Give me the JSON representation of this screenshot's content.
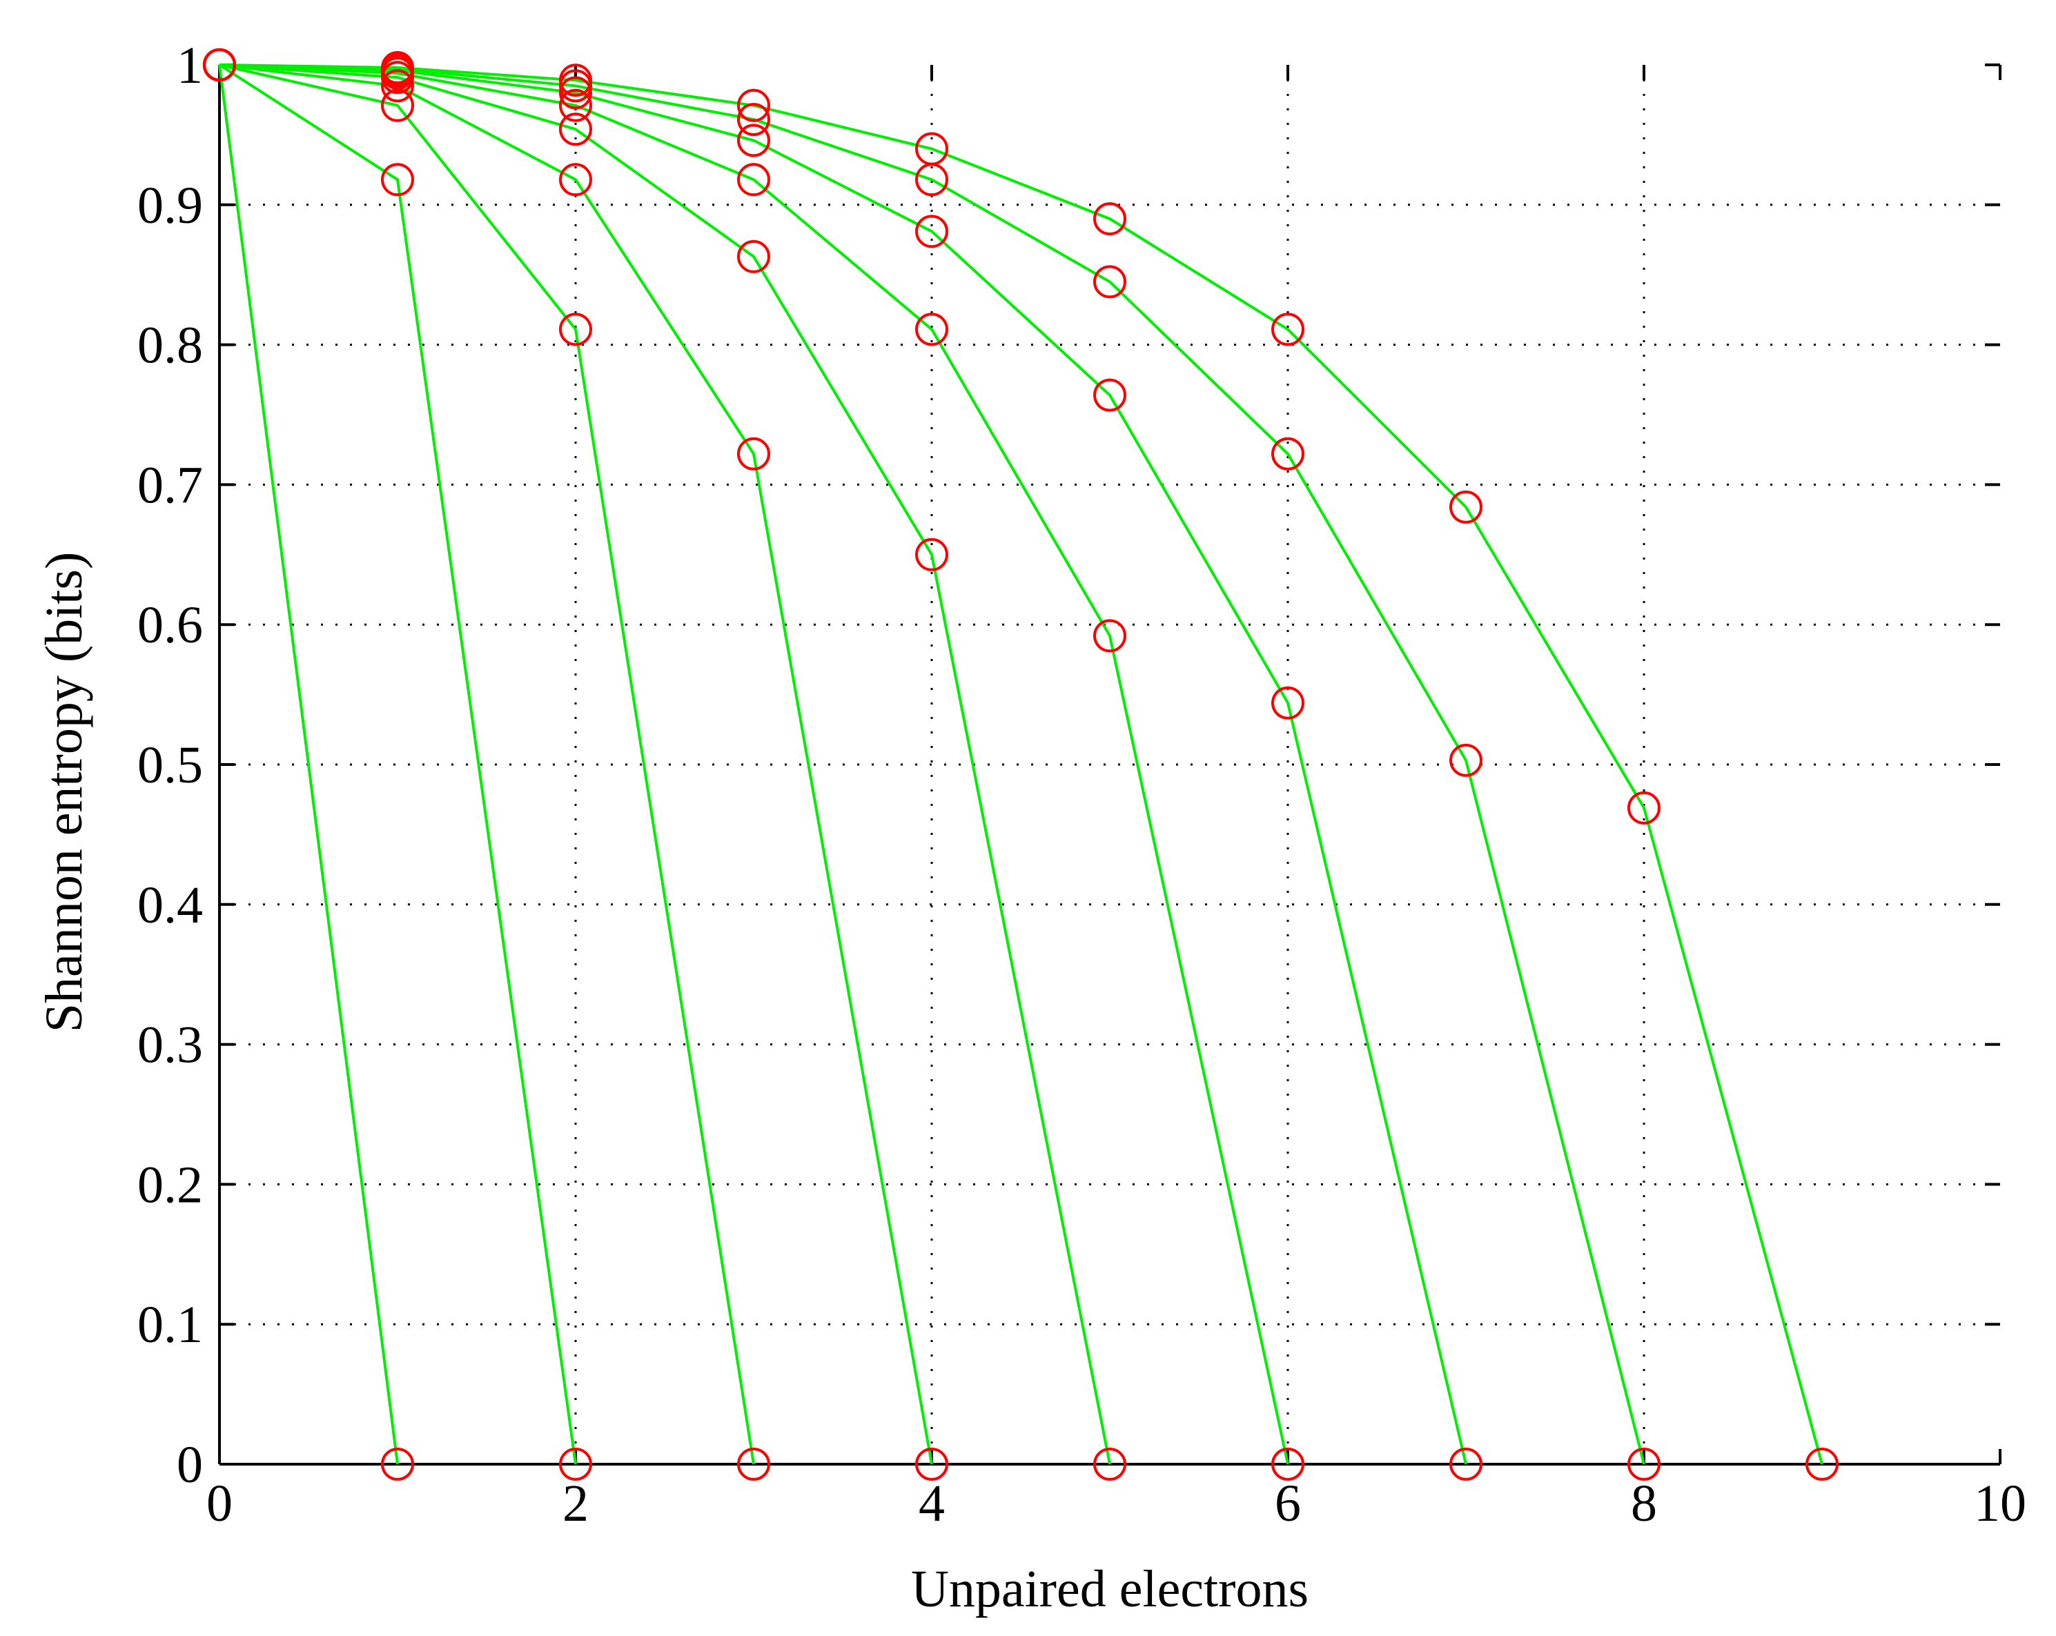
{
  "chart_data": {
    "type": "line",
    "title": "",
    "xlabel": "Unpaired electrons",
    "ylabel": "Shannon entropy (bits)",
    "xlim": [
      0,
      10
    ],
    "ylim": [
      0,
      1
    ],
    "xticks": [
      "0",
      "2",
      "4",
      "6",
      "8",
      "10"
    ],
    "yticks": [
      "0",
      "0.1",
      "0.2",
      "0.3",
      "0.4",
      "0.5",
      "0.6",
      "0.7",
      "0.8",
      "0.9",
      "1"
    ],
    "grid": true,
    "line_color": "#00ee00",
    "marker_color": "#ff0000",
    "marker": "circle",
    "series": [
      {
        "x": [
          0,
          1
        ],
        "y": [
          1,
          0
        ]
      },
      {
        "x": [
          0,
          1,
          2
        ],
        "y": [
          1,
          0.918,
          0
        ]
      },
      {
        "x": [
          0,
          1,
          2,
          3
        ],
        "y": [
          1,
          0.971,
          0.811,
          0
        ]
      },
      {
        "x": [
          0,
          1,
          2,
          3,
          4
        ],
        "y": [
          1,
          0.985,
          0.918,
          0.722,
          0
        ]
      },
      {
        "x": [
          0,
          1,
          2,
          3,
          4,
          5
        ],
        "y": [
          1,
          0.991,
          0.954,
          0.863,
          0.65,
          0
        ]
      },
      {
        "x": [
          0,
          1,
          2,
          3,
          4,
          5,
          6
        ],
        "y": [
          1,
          0.994,
          0.971,
          0.918,
          0.811,
          0.592,
          0
        ]
      },
      {
        "x": [
          0,
          1,
          2,
          3,
          4,
          5,
          6,
          7
        ],
        "y": [
          1,
          0.996,
          0.98,
          0.946,
          0.881,
          0.764,
          0.544,
          0
        ]
      },
      {
        "x": [
          0,
          1,
          2,
          3,
          4,
          5,
          6,
          7,
          8
        ],
        "y": [
          1,
          0.997,
          0.985,
          0.961,
          0.918,
          0.845,
          0.722,
          0.503,
          0
        ]
      },
      {
        "x": [
          0,
          1,
          2,
          3,
          4,
          5,
          6,
          7,
          8,
          9
        ],
        "y": [
          1,
          0.998,
          0.989,
          0.971,
          0.94,
          0.89,
          0.811,
          0.684,
          0.469,
          0
        ]
      }
    ]
  }
}
